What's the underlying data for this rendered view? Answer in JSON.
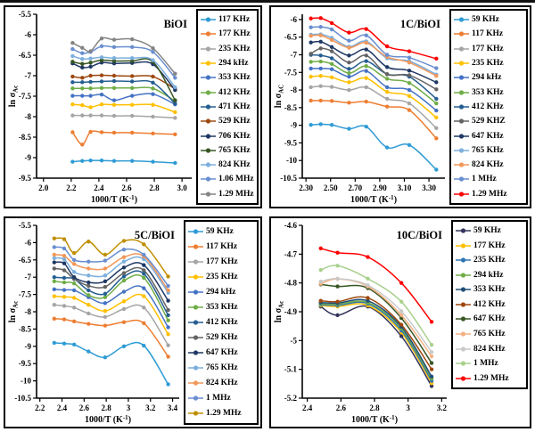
{
  "figure": {
    "background": "#ffffff",
    "border_color": "#000000",
    "xlabel": {
      "prefix": "1000/T (K",
      "sup": "-1",
      "suffix": ")"
    }
  },
  "chart_data": [
    {
      "type": "line",
      "title": "BiOI",
      "ylabel": {
        "prefix": "ln σ",
        "sub": "Ac"
      },
      "xlabel_full": "1000/T (K-1)",
      "grid": false,
      "legend_position": "right",
      "xlim": [
        1.95,
        3.07
      ],
      "ylim": [
        -9.5,
        -5.5
      ],
      "xtick_labels": [
        "2.0",
        "2.2",
        "2.4",
        "2.6",
        "2.8",
        "3.0"
      ],
      "xtick_vals": [
        2.0,
        2.2,
        2.4,
        2.6,
        2.8,
        3.0
      ],
      "ytick_labels": [
        "-5.5",
        "-6",
        "-6.5",
        "-7",
        "-7.5",
        "-8",
        "-8.5",
        "-9",
        "-9.5"
      ],
      "ytick_vals": [
        -5.5,
        -6,
        -6.5,
        -7,
        -7.5,
        -8,
        -8.5,
        -9,
        -9.5
      ],
      "x": [
        2.21,
        2.28,
        2.34,
        2.42,
        2.51,
        2.64,
        2.79,
        2.95
      ],
      "series": [
        {
          "name": "117 KHz",
          "color": "#2E9BD5",
          "values": [
            -9.1,
            -9.08,
            -9.07,
            -9.07,
            -9.08,
            -9.08,
            -9.1,
            -9.13
          ]
        },
        {
          "name": "177 KHz",
          "color": "#ED7D31",
          "values": [
            -8.38,
            -8.68,
            -8.37,
            -8.38,
            -8.39,
            -8.39,
            -8.41,
            -8.43
          ]
        },
        {
          "name": "235 KHz",
          "color": "#A5A5A5",
          "values": [
            -7.97,
            -7.97,
            -7.97,
            -7.97,
            -7.98,
            -7.98,
            -8.0,
            -8.03
          ]
        },
        {
          "name": "294 kHz",
          "color": "#FFC000",
          "values": [
            -7.7,
            -7.72,
            -7.77,
            -7.7,
            -7.71,
            -7.71,
            -7.71,
            -7.89
          ]
        },
        {
          "name": "353 KHz",
          "color": "#4472C4",
          "values": [
            -7.49,
            -7.49,
            -7.49,
            -7.46,
            -7.6,
            -7.49,
            -7.45,
            -7.7
          ]
        },
        {
          "name": "412 KHz",
          "color": "#70AD47",
          "values": [
            -7.31,
            -7.31,
            -7.31,
            -7.3,
            -7.3,
            -7.3,
            -7.31,
            -7.62
          ]
        },
        {
          "name": "471 KHz",
          "color": "#255E91",
          "values": [
            -7.16,
            -7.16,
            -7.15,
            -7.14,
            -7.13,
            -7.14,
            -7.17,
            -7.68
          ]
        },
        {
          "name": "529 KHz",
          "color": "#9E480E",
          "values": [
            -7.02,
            -7.05,
            -7.0,
            -6.99,
            -7.0,
            -7.01,
            -7.02,
            -7.32
          ]
        },
        {
          "name": "706 KHz",
          "color": "#1F3864",
          "values": [
            -6.7,
            -6.8,
            -6.78,
            -6.68,
            -6.7,
            -6.69,
            -6.72,
            -7.35
          ]
        },
        {
          "name": "765 KHz",
          "color": "#375623",
          "values": [
            -6.66,
            -6.71,
            -6.68,
            -6.62,
            -6.64,
            -6.64,
            -6.66,
            -7.6
          ]
        },
        {
          "name": "824 KHz",
          "color": "#7CAFDD",
          "values": [
            -6.52,
            -6.59,
            -6.58,
            -6.55,
            -6.57,
            -6.57,
            -6.62,
            -7.28
          ]
        },
        {
          "name": "1.06 MHz",
          "color": "#698ED0",
          "values": [
            -6.35,
            -6.45,
            -6.42,
            -6.28,
            -6.3,
            -6.3,
            -6.42,
            -7.05
          ]
        },
        {
          "name": "1.29 MHz",
          "color": "#848484",
          "values": [
            -6.2,
            -6.32,
            -6.4,
            -6.09,
            -6.12,
            -6.11,
            -6.33,
            -6.95
          ]
        }
      ]
    },
    {
      "type": "line",
      "title": "1C/BiOI",
      "ylabel": {
        "prefix": "ln σ",
        "sub": "AC"
      },
      "xlabel_full": "1000/T (K-1)",
      "grid": false,
      "legend_position": "right",
      "xlim": [
        2.27,
        3.43
      ],
      "ylim": [
        -10.5,
        -5.85
      ],
      "xtick_labels": [
        "2.30",
        "2.50",
        "2.70",
        "2.90",
        "3.10",
        "3.30"
      ],
      "xtick_vals": [
        2.3,
        2.5,
        2.7,
        2.9,
        3.1,
        3.3
      ],
      "ytick_labels": [
        "-6",
        "-6.5",
        "-7",
        "-7.5",
        "-8",
        "-8.5",
        "-9",
        "-9.5",
        "-10",
        "-10.5"
      ],
      "ytick_vals": [
        -6,
        -6.5,
        -7,
        -7.5,
        -8,
        -8.5,
        -9,
        -9.5,
        -10,
        -10.5
      ],
      "x": [
        2.34,
        2.42,
        2.51,
        2.65,
        2.79,
        2.96,
        3.14,
        3.36
      ],
      "series": [
        {
          "name": "59 KHz",
          "color": "#2E9BD5",
          "values": [
            -8.99,
            -8.97,
            -8.99,
            -9.1,
            -9.04,
            -9.63,
            -9.56,
            -10.26
          ]
        },
        {
          "name": "117 KHz",
          "color": "#ED7D31",
          "values": [
            -8.3,
            -8.3,
            -8.31,
            -8.36,
            -8.33,
            -8.47,
            -8.57,
            -9.37
          ]
        },
        {
          "name": "177 KHz",
          "color": "#A5A5A5",
          "values": [
            -7.92,
            -7.89,
            -7.91,
            -8.0,
            -7.92,
            -8.25,
            -8.38,
            -9.08
          ]
        },
        {
          "name": "235 KHz",
          "color": "#FFC000",
          "values": [
            -7.62,
            -7.6,
            -7.64,
            -7.78,
            -7.66,
            -8.05,
            -8.17,
            -8.78
          ]
        },
        {
          "name": "294 kHz",
          "color": "#4472C4",
          "values": [
            -7.39,
            -7.39,
            -7.41,
            -7.62,
            -7.46,
            -7.92,
            -8.0,
            -8.58
          ]
        },
        {
          "name": "353 KHz",
          "color": "#70AD47",
          "values": [
            -7.2,
            -7.19,
            -7.26,
            -7.52,
            -7.32,
            -7.68,
            -7.8,
            -8.38
          ]
        },
        {
          "name": "412 KHz",
          "color": "#255E91",
          "values": [
            -7.0,
            -7.02,
            -7.1,
            -7.4,
            -7.18,
            -7.55,
            -7.62,
            -8.25
          ]
        },
        {
          "name": "529 KHZ",
          "color": "#636363",
          "values": [
            -6.97,
            -6.82,
            -6.9,
            -7.22,
            -7.02,
            -7.55,
            -7.58,
            -7.98
          ]
        },
        {
          "name": "647 KHz",
          "color": "#1F3864",
          "values": [
            -6.65,
            -6.63,
            -6.78,
            -7.02,
            -6.85,
            -7.35,
            -7.45,
            -7.78
          ]
        },
        {
          "name": "765 KHz",
          "color": "#7CAFDD",
          "values": [
            -6.43,
            -6.42,
            -6.52,
            -6.77,
            -6.62,
            -7.1,
            -7.18,
            -7.56
          ]
        },
        {
          "name": "824 KHz",
          "color": "#F1975A",
          "values": [
            -6.46,
            -6.45,
            -6.58,
            -6.8,
            -6.66,
            -7.06,
            -7.22,
            -7.6
          ]
        },
        {
          "name": "1 MHz",
          "color": "#698ED0",
          "values": [
            -6.22,
            -6.21,
            -6.28,
            -6.6,
            -6.45,
            -7.0,
            -7.08,
            -7.38
          ]
        },
        {
          "name": "1.29 MHz",
          "color": "#FF0000",
          "values": [
            -5.97,
            -5.96,
            -6.1,
            -6.37,
            -6.27,
            -6.76,
            -6.9,
            -7.11
          ]
        }
      ]
    },
    {
      "type": "line",
      "title": "5C/BiOI",
      "ylabel": {
        "prefix": "ln σ",
        "sub": "Ac"
      },
      "xlabel_full": "1000/T (K-1)",
      "grid": false,
      "legend_position": "right",
      "xlim": [
        2.17,
        3.46
      ],
      "ylim": [
        -10.5,
        -5.5
      ],
      "xtick_labels": [
        "2.2",
        "2.4",
        "2.6",
        "2.8",
        "3",
        "3.2",
        "3.4"
      ],
      "xtick_vals": [
        2.2,
        2.4,
        2.6,
        2.8,
        3.0,
        3.2,
        3.4
      ],
      "ytick_labels": [
        "-5.5",
        "-6",
        "-6.5",
        "-7",
        "-7.5",
        "-8",
        "-8.5",
        "-9",
        "-9.5",
        "-10",
        "-10.5"
      ],
      "ytick_vals": [
        -5.5,
        -6,
        -6.5,
        -7,
        -7.5,
        -8,
        -8.5,
        -9,
        -9.5,
        -10,
        -10.5
      ],
      "x": [
        2.33,
        2.42,
        2.51,
        2.64,
        2.79,
        2.96,
        3.14,
        3.36
      ],
      "series": [
        {
          "name": "59 KHz",
          "color": "#2E9BD5",
          "values": [
            -8.9,
            -8.92,
            -8.95,
            -9.15,
            -9.32,
            -9.0,
            -8.98,
            -10.1
          ]
        },
        {
          "name": "117 KHz",
          "color": "#ED7D31",
          "values": [
            -8.2,
            -8.22,
            -8.28,
            -8.35,
            -8.4,
            -8.3,
            -8.33,
            -9.3
          ]
        },
        {
          "name": "177 KHz",
          "color": "#A5A5A5",
          "values": [
            -7.8,
            -7.83,
            -7.88,
            -8.05,
            -8.15,
            -7.92,
            -7.88,
            -8.97
          ]
        },
        {
          "name": "235 KHz",
          "color": "#FFC000",
          "values": [
            -7.55,
            -7.57,
            -7.6,
            -7.8,
            -7.98,
            -7.7,
            -7.55,
            -8.65
          ]
        },
        {
          "name": "294 kHz",
          "color": "#4472C4",
          "values": [
            -7.35,
            -7.37,
            -7.38,
            -7.58,
            -7.75,
            -7.42,
            -7.32,
            -8.45
          ]
        },
        {
          "name": "353 KHz",
          "color": "#70AD47",
          "values": [
            -7.12,
            -7.15,
            -7.18,
            -7.52,
            -7.58,
            -7.1,
            -7.02,
            -8.25
          ]
        },
        {
          "name": "412 KHz",
          "color": "#255E91",
          "values": [
            -7.0,
            -7.02,
            -7.05,
            -7.38,
            -7.48,
            -6.98,
            -6.9,
            -8.1
          ]
        },
        {
          "name": "529 KHz",
          "color": "#636363",
          "values": [
            -6.75,
            -6.8,
            -7.05,
            -7.25,
            -7.28,
            -6.88,
            -6.8,
            -7.95
          ]
        },
        {
          "name": "647 KHz",
          "color": "#1F3864",
          "values": [
            -6.57,
            -6.6,
            -7.0,
            -7.15,
            -7.12,
            -6.72,
            -6.65,
            -7.68
          ]
        },
        {
          "name": "765 KHz",
          "color": "#7CAFDD",
          "values": [
            -6.45,
            -6.48,
            -6.85,
            -6.95,
            -6.95,
            -6.55,
            -6.48,
            -7.45
          ]
        },
        {
          "name": "824 KHz",
          "color": "#F1975A",
          "values": [
            -6.35,
            -6.38,
            -6.62,
            -6.75,
            -6.75,
            -6.42,
            -6.4,
            -7.38
          ]
        },
        {
          "name": "1 MHz",
          "color": "#698ED0",
          "values": [
            -6.13,
            -6.17,
            -6.5,
            -6.55,
            -6.52,
            -6.2,
            -6.35,
            -7.25
          ]
        },
        {
          "name": "1.29 MHz",
          "color": "#BF8F00",
          "values": [
            -5.88,
            -5.9,
            -6.3,
            -5.97,
            -6.35,
            -5.95,
            -6.05,
            -6.98
          ]
        }
      ]
    },
    {
      "type": "line",
      "title": "10C/BiOI",
      "ylabel": {
        "prefix": "ln σ",
        "sub": "Ac"
      },
      "xlabel_full": "1000/T (K-1)",
      "grid": false,
      "legend_position": "right",
      "xlim": [
        2.37,
        3.23
      ],
      "ylim": [
        -5.2,
        -4.6
      ],
      "xtick_labels": [
        "2.4",
        "2.6",
        "2.8",
        "3",
        "3.2"
      ],
      "xtick_vals": [
        2.4,
        2.6,
        2.8,
        3.0,
        3.2
      ],
      "ytick_labels": [
        "-4.6",
        "-4.7",
        "-4.8",
        "-4.9",
        "-5",
        "-5.1",
        "-5.2"
      ],
      "ytick_vals": [
        -4.6,
        -4.7,
        -4.8,
        -4.9,
        -5.0,
        -5.1,
        -5.2
      ],
      "x": [
        2.48,
        2.58,
        2.76,
        2.96,
        3.14
      ],
      "series": [
        {
          "name": "59 KHz",
          "color": "#33335C",
          "values": [
            -4.882,
            -4.912,
            -4.882,
            -4.985,
            -5.158
          ]
        },
        {
          "name": "177 KHz",
          "color": "#FFC000",
          "values": [
            -4.878,
            -4.882,
            -4.878,
            -4.972,
            -5.148
          ]
        },
        {
          "name": "235 KHz",
          "color": "#2E75B6",
          "values": [
            -4.875,
            -4.878,
            -4.872,
            -4.965,
            -5.14
          ]
        },
        {
          "name": "294 kHz",
          "color": "#70AD47",
          "values": [
            -4.872,
            -4.874,
            -4.868,
            -4.958,
            -5.132
          ]
        },
        {
          "name": "353 KHz",
          "color": "#1F4E79",
          "values": [
            -4.868,
            -4.87,
            -4.862,
            -4.952,
            -5.125
          ]
        },
        {
          "name": "412 KHz",
          "color": "#9E480E",
          "values": [
            -4.862,
            -4.865,
            -4.852,
            -4.945,
            -5.1
          ]
        },
        {
          "name": "647 KHz",
          "color": "#375623",
          "values": [
            -4.805,
            -4.812,
            -4.818,
            -4.922,
            -5.078
          ]
        },
        {
          "name": "765 KHz",
          "color": "#F4B183",
          "values": [
            -4.803,
            -4.786,
            -4.812,
            -4.912,
            -5.055
          ]
        },
        {
          "name": "824 KHz",
          "color": "#C9C9C9",
          "values": [
            -4.795,
            -4.785,
            -4.808,
            -4.898,
            -5.04
          ]
        },
        {
          "name": "1 MHz",
          "color": "#A9D18E",
          "values": [
            -4.755,
            -4.74,
            -4.785,
            -4.865,
            -5.015
          ]
        },
        {
          "name": "1.29 MHz",
          "color": "#FF0000",
          "values": [
            -4.68,
            -4.695,
            -4.71,
            -4.8,
            -4.935
          ]
        }
      ]
    }
  ]
}
